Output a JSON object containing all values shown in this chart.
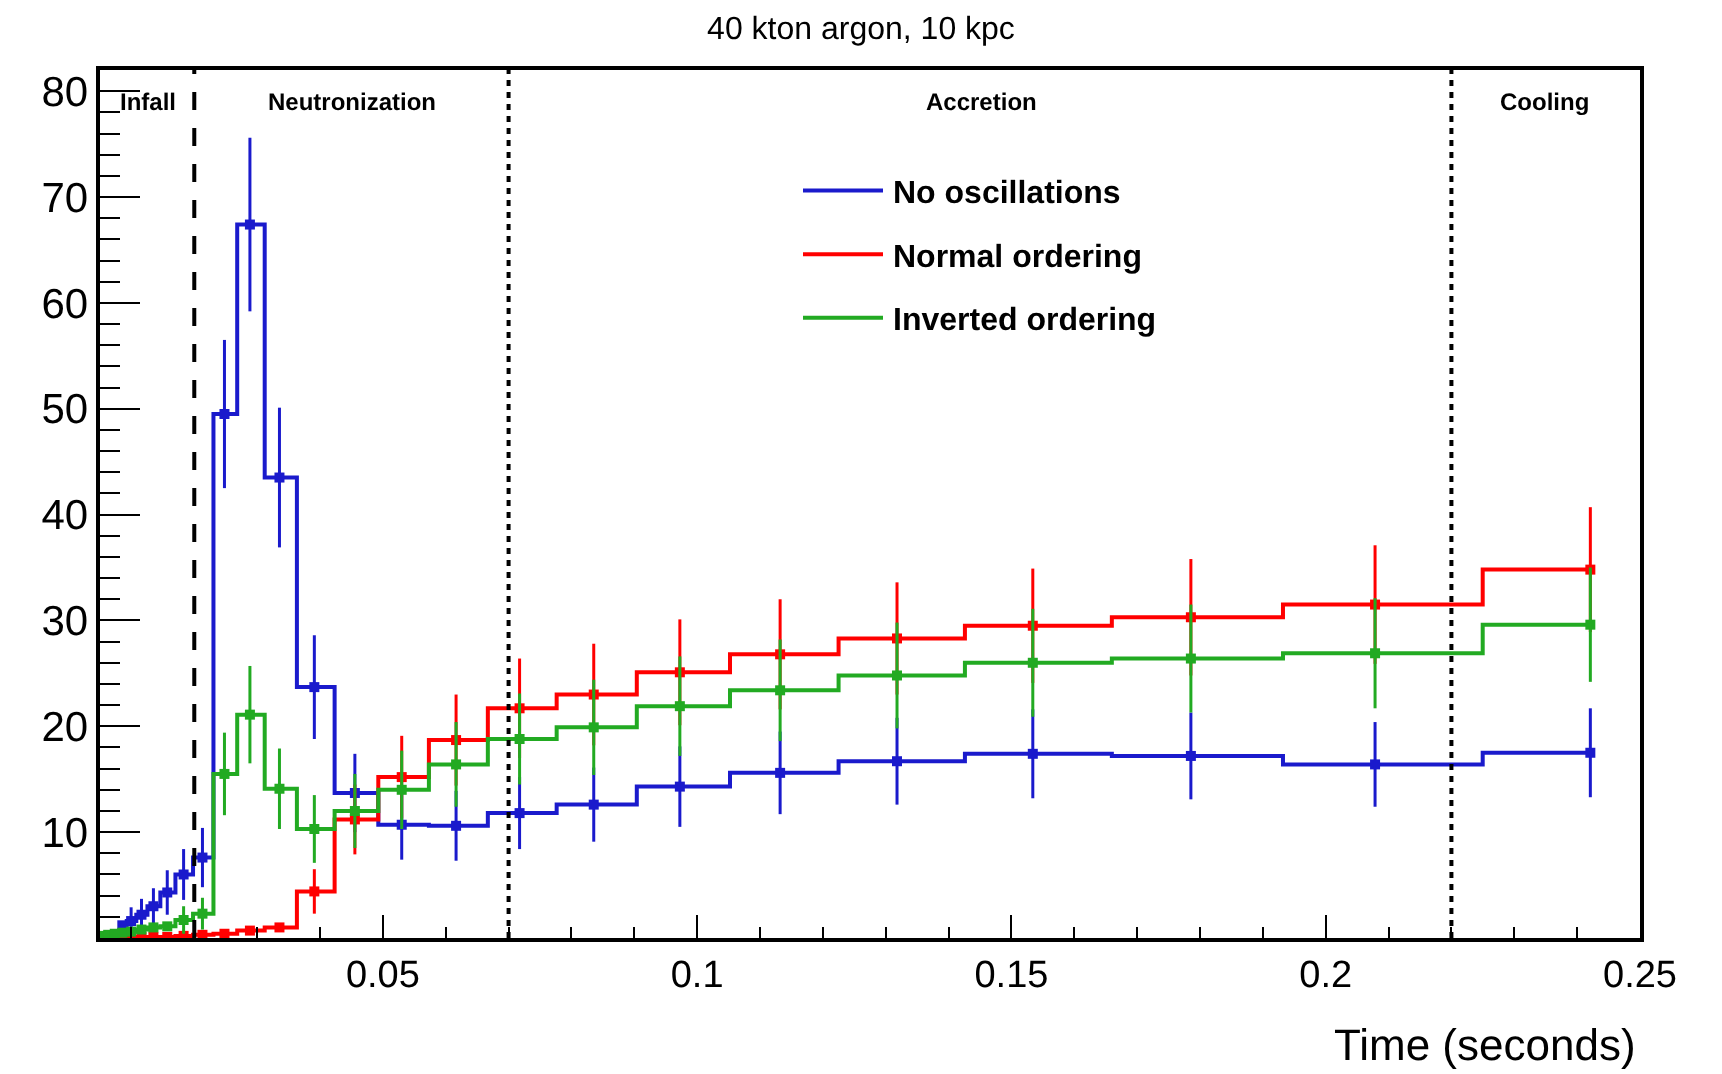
{
  "chart_data": {
    "type": "step",
    "title": "40 kton argon, 10 kpc",
    "xlabel": "Time (seconds)",
    "x": [
      0.0054,
      0.0063,
      0.00735,
      0.00855,
      0.00995,
      0.0116,
      0.0135,
      0.0157,
      0.0183,
      0.0213,
      0.0248,
      0.02885,
      0.03355,
      0.0391,
      0.04555,
      0.053,
      0.06165,
      0.07175,
      0.08355,
      0.09725,
      0.1132,
      0.1318,
      0.1534,
      0.17855,
      0.20785,
      0.2421
    ],
    "series": [
      {
        "name": "No oscillations",
        "color": "#1a1acc",
        "values": [
          null,
          null,
          null,
          1.2,
          1.6,
          2.2,
          3.0,
          4.3,
          6.0,
          7.6,
          49.5,
          67.4,
          43.5,
          23.7,
          13.7,
          10.7,
          10.6,
          11.8,
          12.6,
          14.3,
          15.6,
          16.7,
          17.4,
          17.2,
          16.4,
          17.5
        ],
        "errors": [
          null,
          null,
          null,
          null,
          1.3,
          1.5,
          1.7,
          2.1,
          2.4,
          2.8,
          7.0,
          8.2,
          6.6,
          4.9,
          3.7,
          3.3,
          3.3,
          3.4,
          3.5,
          3.8,
          3.9,
          4.1,
          4.2,
          4.1,
          4.0,
          4.2
        ]
      },
      {
        "name": "Normal ordering",
        "color": "#ff0000",
        "values": [
          null,
          null,
          null,
          0.1,
          0.1,
          0.1,
          0.1,
          0.1,
          0.2,
          0.3,
          0.4,
          0.7,
          1.0,
          4.4,
          11.2,
          15.2,
          18.7,
          21.7,
          23.0,
          25.1,
          26.8,
          28.3,
          29.5,
          30.3,
          31.5,
          34.8
        ],
        "errors": [
          null,
          null,
          null,
          null,
          null,
          null,
          null,
          null,
          null,
          null,
          null,
          null,
          null,
          2.1,
          3.3,
          3.9,
          4.3,
          4.7,
          4.8,
          5.0,
          5.2,
          5.3,
          5.4,
          5.5,
          5.6,
          5.9
        ]
      },
      {
        "name": "Inverted ordering",
        "color": "#22aa22",
        "values": [
          0.2,
          0.3,
          0.4,
          0.5,
          0.6,
          0.8,
          1.0,
          1.1,
          1.7,
          2.3,
          15.5,
          21.1,
          14.1,
          10.3,
          12.0,
          14.0,
          16.4,
          18.8,
          19.9,
          21.9,
          23.4,
          24.8,
          26.0,
          26.4,
          26.9,
          29.6
        ],
        "errors": [
          null,
          null,
          null,
          null,
          null,
          null,
          null,
          null,
          1.3,
          1.5,
          3.9,
          4.6,
          3.8,
          3.2,
          3.5,
          3.7,
          4.0,
          4.3,
          4.5,
          4.7,
          4.8,
          5.0,
          5.1,
          5.1,
          5.2,
          5.4
        ]
      }
    ],
    "ref_lines": [
      {
        "axis": "x",
        "value": 0.02,
        "color": "#000000",
        "line_style": "dashed"
      },
      {
        "axis": "x",
        "value": 0.07,
        "color": "#000000",
        "line_style": "dotted"
      },
      {
        "axis": "x",
        "value": 0.22,
        "color": "#000000",
        "line_style": "dotted"
      }
    ],
    "annotations": [
      "Infall",
      "Neutronization",
      "Accretion",
      "Cooling"
    ],
    "xlim": [
      0.005,
      0.25
    ],
    "xticks": [
      0.05,
      0.1,
      0.15,
      0.2,
      0.25
    ],
    "ylim": [
      0,
      82
    ],
    "yticks": [
      10,
      20,
      30,
      40,
      50,
      60,
      70,
      80
    ],
    "grid": false,
    "legend": "top",
    "marker": "square",
    "line_style": "solid"
  }
}
